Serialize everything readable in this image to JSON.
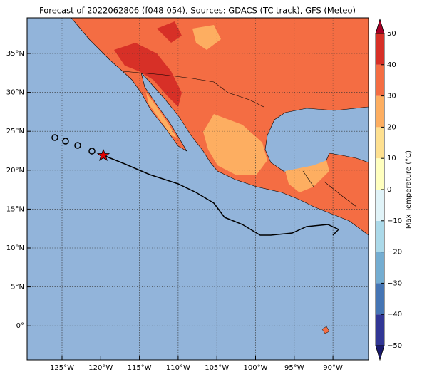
{
  "title": "Forecast of 2022062806 (f048-054), Sources: GDACS (TC track), GFS (Meteo)",
  "lon_labels": [
    "125°W",
    "120°W",
    "115°W",
    "110°W",
    "105°W",
    "100°W",
    "95°W",
    "90°W"
  ],
  "lat_labels": [
    "35°N",
    "30°N",
    "25°N",
    "20°N",
    "15°N",
    "10°N",
    "5°N",
    "0°"
  ],
  "colorbar": {
    "label": "Max Temperature (°C)",
    "ticks": [
      {
        "value": -50,
        "label": "−50"
      },
      {
        "value": -40,
        "label": "−40"
      },
      {
        "value": -30,
        "label": "−30"
      },
      {
        "value": -20,
        "label": "−20"
      },
      {
        "value": -10,
        "label": "−10"
      },
      0,
      10,
      20,
      30,
      40,
      50
    ],
    "colors": [
      "#313695",
      "#4575b4",
      "#74add1",
      "#abd9e9",
      "#e0f3f8",
      "#ffffbf",
      "#fee090",
      "#fdae61",
      "#f46d43",
      "#d73027"
    ],
    "under_color": "#1a1a6e",
    "over_color": "#a50026"
  }
}
